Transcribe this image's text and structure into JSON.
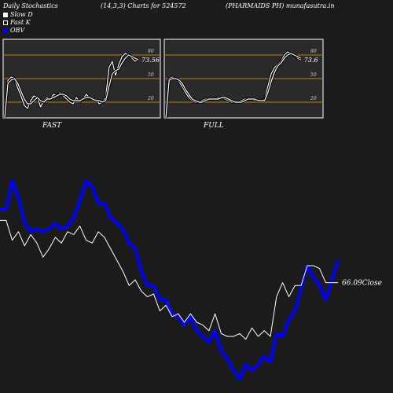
{
  "header": {
    "left": "Daily Stochastics",
    "center": "(14,3,3) Charts for 524572",
    "right": "(PHARMAIDS PH) munafasutra.in"
  },
  "legend": {
    "slow_d": "Slow  D",
    "fast_k": "Fast K",
    "obv": "OBV"
  },
  "colors": {
    "background": "#1b1b1b",
    "panel_bg": "#2a2a2a",
    "threshold_line": "#b8860b",
    "price": "#ffffff",
    "obv": "#0000ff"
  },
  "chart_data": [
    {
      "type": "line",
      "panel": "FAST",
      "label": "FAST",
      "ylim": [
        0,
        100
      ],
      "yticks": [
        "80",
        "50",
        "20"
      ],
      "value_label": "73.56",
      "series": [
        {
          "name": "Fast K",
          "values": [
            0,
            48,
            52,
            50,
            38,
            28,
            16,
            12,
            22,
            28,
            26,
            14,
            22,
            26,
            24,
            30,
            28,
            32,
            28,
            24,
            20,
            18,
            26,
            20,
            24,
            30,
            26,
            22,
            24,
            18,
            20,
            26,
            64,
            72,
            54,
            68,
            78,
            82,
            80,
            76,
            72,
            74
          ]
        },
        {
          "name": "Slow  D",
          "values": [
            0,
            44,
            48,
            50,
            44,
            34,
            24,
            18,
            18,
            22,
            26,
            22,
            20,
            24,
            24,
            26,
            28,
            30,
            30,
            28,
            24,
            22,
            22,
            22,
            24,
            26,
            26,
            24,
            22,
            22,
            20,
            22,
            40,
            56,
            60,
            62,
            70,
            76,
            80,
            78,
            76,
            74
          ]
        }
      ]
    },
    {
      "type": "line",
      "panel": "FULL",
      "label": "FULL",
      "ylim": [
        0,
        100
      ],
      "yticks": [
        "80",
        "50",
        "20"
      ],
      "value_label": "73.6",
      "series": [
        {
          "name": "Fast K",
          "values": [
            0,
            50,
            52,
            50,
            46,
            40,
            32,
            26,
            22,
            20,
            20,
            22,
            24,
            24,
            24,
            24,
            26,
            26,
            24,
            22,
            20,
            20,
            20,
            22,
            24,
            24,
            24,
            22,
            22,
            22,
            24,
            40,
            56,
            64,
            68,
            72,
            80,
            84,
            82,
            80,
            76,
            74
          ]
        },
        {
          "name": "Slow  D",
          "values": [
            0,
            48,
            50,
            50,
            48,
            44,
            36,
            30,
            24,
            22,
            20,
            20,
            22,
            24,
            24,
            24,
            24,
            26,
            26,
            24,
            22,
            20,
            20,
            20,
            22,
            24,
            24,
            24,
            22,
            22,
            22,
            32,
            46,
            58,
            66,
            70,
            76,
            80,
            82,
            80,
            78,
            76
          ]
        }
      ]
    },
    {
      "type": "line",
      "panel": "main",
      "close_label": "66.09Close",
      "series": [
        {
          "name": "Close",
          "values": [
            112,
            112,
            98,
            104,
            94,
            102,
            96,
            86,
            92,
            100,
            96,
            104,
            102,
            108,
            98,
            96,
            104,
            100,
            92,
            84,
            76,
            66,
            70,
            62,
            58,
            60,
            48,
            52,
            44,
            46,
            40,
            46,
            40,
            38,
            34,
            46,
            32,
            30,
            30,
            32,
            28,
            36,
            30,
            34,
            30,
            58,
            68,
            58,
            66,
            66,
            80,
            80,
            78,
            68,
            68,
            68
          ]
        },
        {
          "name": "OBV",
          "values": [
            120,
            120,
            140,
            128,
            110,
            104,
            106,
            104,
            106,
            110,
            106,
            108,
            114,
            126,
            140,
            136,
            124,
            124,
            114,
            110,
            106,
            96,
            92,
            76,
            66,
            66,
            56,
            56,
            46,
            44,
            38,
            44,
            34,
            30,
            26,
            34,
            20,
            14,
            6,
            0,
            10,
            6,
            10,
            16,
            12,
            32,
            30,
            42,
            48,
            64,
            80,
            72,
            66,
            56,
            70,
            84
          ]
        }
      ]
    }
  ]
}
